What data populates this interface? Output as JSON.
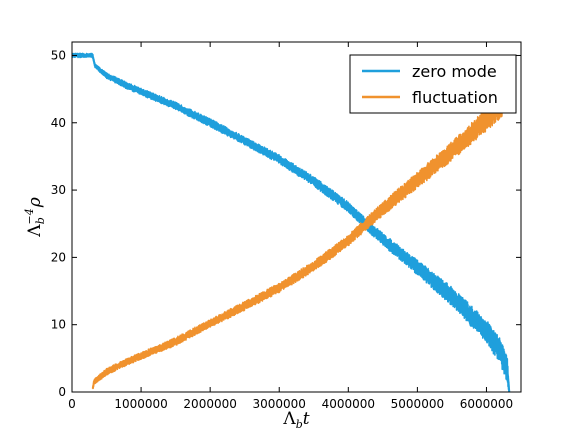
{
  "chart_data": {
    "type": "line",
    "xlabel": "Λbt",
    "ylabel": "Λb−4 ρ",
    "xlim": [
      0,
      6500000
    ],
    "ylim": [
      0,
      52
    ],
    "x_ticks": [
      "0",
      "1000000",
      "2000000",
      "3000000",
      "4000000",
      "5000000",
      "6000000"
    ],
    "y_ticks": [
      "0",
      "10",
      "20",
      "30",
      "40",
      "50"
    ],
    "legend_position": "top-right",
    "grid": false,
    "series": [
      {
        "name": "zero mode",
        "color": "#1f9fdc",
        "x": [
          0,
          300000,
          330000,
          500000,
          800000,
          1100000,
          1500000,
          2000000,
          2500000,
          3000000,
          3500000,
          4000000,
          4250000,
          4500000,
          5000000,
          5500000,
          6000000,
          6200000,
          6300000,
          6330000
        ],
        "y": [
          50,
          50,
          48.5,
          47,
          45.5,
          44.2,
          42.5,
          40,
          37.3,
          34.6,
          31.3,
          27.5,
          25,
          22.7,
          18.5,
          14.2,
          9,
          6,
          3.5,
          0
        ],
        "band": [
          0.3,
          0.3,
          0.3,
          0.4,
          0.5,
          0.5,
          0.55,
          0.6,
          0.6,
          0.65,
          0.7,
          0.75,
          0.8,
          0.9,
          1.1,
          1.4,
          1.7,
          1.9,
          2.0,
          0.5
        ]
      },
      {
        "name": "fluctuation",
        "color": "#f0922e",
        "x": [
          300000,
          320000,
          500000,
          800000,
          1100000,
          1500000,
          2000000,
          2500000,
          3000000,
          3500000,
          4000000,
          4250000,
          4500000,
          5000000,
          5500000,
          6000000,
          6300000
        ],
        "y": [
          0.5,
          1.5,
          3,
          4.5,
          5.8,
          7.5,
          10.2,
          12.8,
          15.5,
          18.7,
          22.5,
          24.9,
          27.2,
          31.5,
          35.8,
          40.5,
          43.5
        ],
        "band": [
          0.3,
          0.4,
          0.5,
          0.5,
          0.55,
          0.6,
          0.6,
          0.65,
          0.7,
          0.75,
          0.8,
          0.9,
          1.0,
          1.2,
          1.4,
          1.7,
          1.9
        ]
      }
    ]
  }
}
